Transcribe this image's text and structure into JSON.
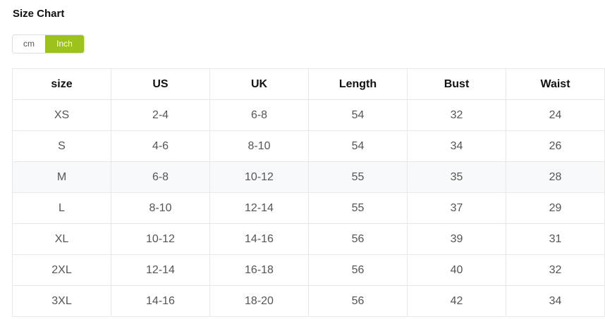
{
  "title": "Size Chart",
  "units": {
    "options": [
      "cm",
      "Inch"
    ],
    "selected": "Inch",
    "accent": "#9cc31d"
  },
  "table": {
    "headers": [
      "size",
      "US",
      "UK",
      "Length",
      "Bust",
      "Waist"
    ],
    "rows": [
      [
        "XS",
        "2-4",
        "6-8",
        "54",
        "32",
        "24"
      ],
      [
        "S",
        "4-6",
        "8-10",
        "54",
        "34",
        "26"
      ],
      [
        "M",
        "6-8",
        "10-12",
        "55",
        "35",
        "28"
      ],
      [
        "L",
        "8-10",
        "12-14",
        "55",
        "37",
        "29"
      ],
      [
        "XL",
        "10-12",
        "14-16",
        "56",
        "39",
        "31"
      ],
      [
        "2XL",
        "12-14",
        "16-18",
        "56",
        "40",
        "32"
      ],
      [
        "3XL",
        "14-16",
        "18-20",
        "56",
        "42",
        "34"
      ]
    ]
  }
}
